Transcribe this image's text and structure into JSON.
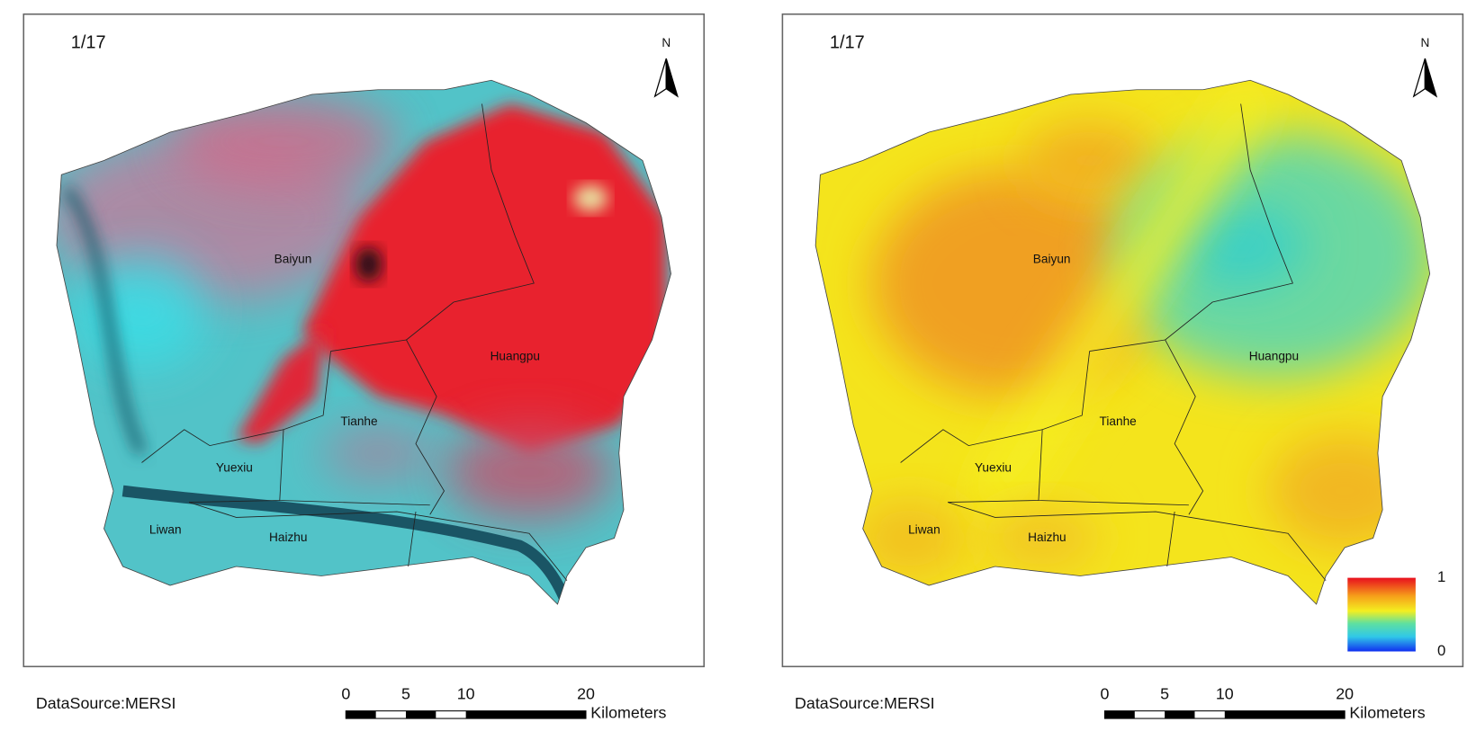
{
  "panels": [
    {
      "date": "1/17",
      "north": "N",
      "districts": [
        "Baiyun",
        "Huangpu",
        "Tianhe",
        "Yuexiu",
        "Liwan",
        "Haizhu"
      ],
      "source": "DataSource:MERSI",
      "scale_bar": {
        "ticks": [
          0,
          5,
          10,
          20
        ],
        "unit": "Kilometers"
      }
    },
    {
      "date": "1/17",
      "north": "N",
      "districts": [
        "Baiyun",
        "Huangpu",
        "Tianhe",
        "Yuexiu",
        "Liwan",
        "Haizhu"
      ],
      "source": "DataSource:MERSI",
      "scale_bar": {
        "ticks": [
          0,
          5,
          10,
          20
        ],
        "unit": "Kilometers"
      },
      "legend": {
        "max": 1,
        "min": 0
      }
    }
  ]
}
